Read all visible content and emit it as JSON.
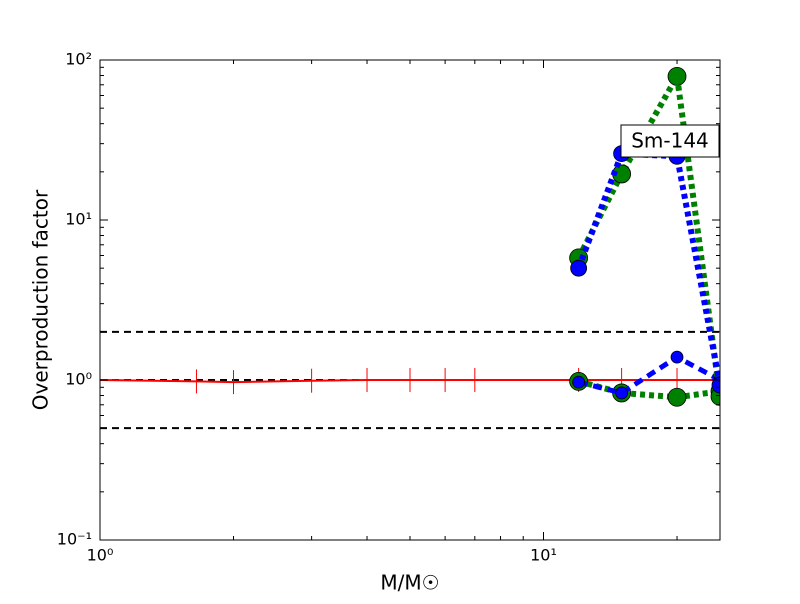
{
  "chart_data": {
    "type": "line",
    "xlabel": "M/M☉",
    "ylabel": "Overproduction factor",
    "annotation": "Sm-144",
    "xscale": "log",
    "yscale": "log",
    "xlim": [
      1,
      25
    ],
    "ylim": [
      0.1,
      100
    ],
    "xticks": [
      {
        "value": 1,
        "label": "10⁰"
      },
      {
        "value": 10,
        "label": "10¹"
      }
    ],
    "yticks": [
      {
        "value": 0.1,
        "label": "10⁻¹"
      },
      {
        "value": 1,
        "label": "10⁰"
      },
      {
        "value": 10,
        "label": "10¹"
      },
      {
        "value": 100,
        "label": "10²"
      }
    ],
    "hlines": [
      0.5,
      1,
      2
    ],
    "series": [
      {
        "color": "#ff0000",
        "style": "solid",
        "marker": "errorbar",
        "x": [
          1,
          1.65,
          2,
          3,
          4,
          5,
          6,
          7,
          12,
          15,
          20,
          25
        ],
        "values": [
          1,
          0.98,
          0.97,
          0.99,
          1,
          1,
          1,
          1,
          1,
          1,
          1,
          1
        ]
      },
      {
        "color": "#008000",
        "style": "dotted",
        "marker": "circle",
        "marker_size": 9,
        "x": [
          12,
          15,
          20,
          25
        ],
        "values": [
          0.98,
          0.83,
          0.78,
          0.85
        ]
      },
      {
        "color": "#0000ff",
        "style": "dashed",
        "marker": "circle",
        "marker_size": 6,
        "x": [
          12,
          15,
          20,
          25
        ],
        "values": [
          0.97,
          0.83,
          1.39,
          1.0
        ]
      },
      {
        "color": "#008000",
        "style": "dotted",
        "marker": "circle",
        "marker_size": 9,
        "x": [
          12,
          15,
          20,
          25
        ],
        "values": [
          5.8,
          19.4,
          79,
          0.79
        ]
      },
      {
        "color": "#0000ff",
        "style": "dotted",
        "marker": "circle",
        "marker_size": 8,
        "x": [
          12,
          15,
          20,
          25
        ],
        "values": [
          5.0,
          26,
          25,
          0.93
        ]
      }
    ]
  }
}
